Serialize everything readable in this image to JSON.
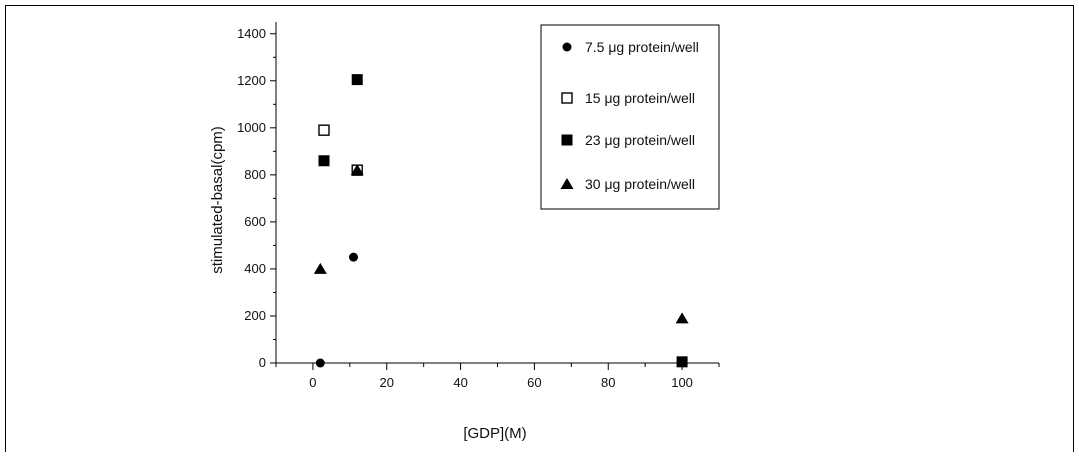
{
  "chart_data": {
    "type": "scatter",
    "xlabel": "[GDP](M)",
    "ylabel": "stimulated-basal(cpm)",
    "xlim": [
      -10,
      110
    ],
    "ylim": [
      0,
      1450
    ],
    "x_ticks": [
      0,
      20,
      40,
      60,
      80,
      100
    ],
    "y_ticks": [
      0,
      200,
      400,
      600,
      800,
      1000,
      1200,
      1400
    ],
    "grid": false,
    "legend_position": "top-right",
    "series": [
      {
        "name": "7.5 μg protein/well",
        "marker": "filled-circle",
        "color": "#000000",
        "points": [
          [
            2,
            0
          ],
          [
            11,
            450
          ]
        ]
      },
      {
        "name": "15 μg protein/well",
        "marker": "open-square",
        "color": "#000000",
        "points": [
          [
            3,
            990
          ],
          [
            12,
            820
          ]
        ]
      },
      {
        "name": "23 μg protein/well",
        "marker": "filled-square",
        "color": "#000000",
        "points": [
          [
            3,
            860
          ],
          [
            12,
            1205
          ],
          [
            100,
            5
          ]
        ]
      },
      {
        "name": "30 μg protein/well",
        "marker": "filled-triangle",
        "color": "#000000",
        "points": [
          [
            2,
            400
          ],
          [
            12,
            820
          ],
          [
            100,
            190
          ]
        ]
      }
    ]
  }
}
